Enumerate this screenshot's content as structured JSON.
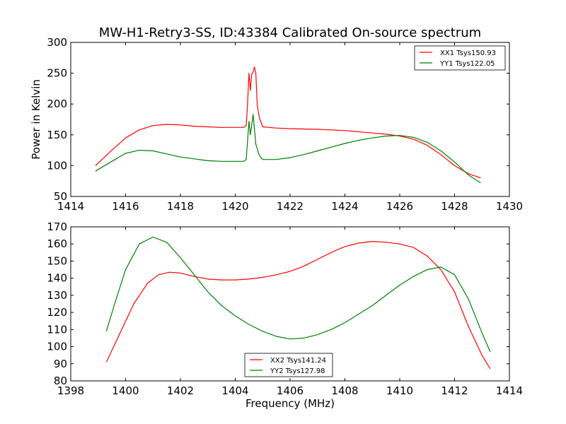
{
  "title": "MW-H1-Retry3-SS, ID:43384 Calibrated On-source spectrum",
  "chart_data": [
    {
      "type": "line",
      "title": "MW-H1-Retry3-SS, ID:43384 Calibrated On-source spectrum",
      "xlabel": "",
      "ylabel": "Power in Kelvin",
      "xlim": [
        1414,
        1430
      ],
      "ylim": [
        50,
        300
      ],
      "xticks": [
        1414,
        1416,
        1418,
        1420,
        1422,
        1424,
        1426,
        1428,
        1430
      ],
      "yticks": [
        50,
        100,
        150,
        200,
        250,
        300
      ],
      "grid": false,
      "legend_position": "top-right",
      "series": [
        {
          "name": "XX1 Tsys150.93",
          "color": "#ff0000",
          "points": [
            [
              1414.9,
              100
            ],
            [
              1415.5,
              125
            ],
            [
              1416.0,
              145
            ],
            [
              1416.5,
              158
            ],
            [
              1417.0,
              165
            ],
            [
              1417.5,
              167
            ],
            [
              1418.0,
              166
            ],
            [
              1418.5,
              164
            ],
            [
              1419.0,
              163
            ],
            [
              1419.5,
              162
            ],
            [
              1420.0,
              162
            ],
            [
              1420.3,
              162
            ],
            [
              1420.4,
              165
            ],
            [
              1420.45,
              200
            ],
            [
              1420.5,
              250
            ],
            [
              1420.55,
              222
            ],
            [
              1420.6,
              248
            ],
            [
              1420.65,
              252
            ],
            [
              1420.7,
              260
            ],
            [
              1420.75,
              250
            ],
            [
              1420.8,
              200
            ],
            [
              1420.85,
              185
            ],
            [
              1420.9,
              175
            ],
            [
              1421.0,
              163
            ],
            [
              1421.5,
              161
            ],
            [
              1422.0,
              160
            ],
            [
              1423.0,
              159
            ],
            [
              1424.0,
              157
            ],
            [
              1425.0,
              153
            ],
            [
              1425.5,
              151
            ],
            [
              1426.0,
              148
            ],
            [
              1426.5,
              143
            ],
            [
              1427.0,
              133
            ],
            [
              1427.5,
              118
            ],
            [
              1428.0,
              100
            ],
            [
              1428.5,
              87
            ],
            [
              1428.95,
              80
            ]
          ]
        },
        {
          "name": "YY1 Tsys122.05",
          "color": "#008000",
          "points": [
            [
              1414.9,
              91
            ],
            [
              1415.5,
              107
            ],
            [
              1416.0,
              120
            ],
            [
              1416.5,
              125
            ],
            [
              1417.0,
              124
            ],
            [
              1417.5,
              119
            ],
            [
              1418.0,
              114
            ],
            [
              1418.5,
              111
            ],
            [
              1419.0,
              108
            ],
            [
              1419.5,
              107
            ],
            [
              1420.0,
              107
            ],
            [
              1420.3,
              107
            ],
            [
              1420.4,
              110
            ],
            [
              1420.45,
              140
            ],
            [
              1420.5,
              172
            ],
            [
              1420.55,
              150
            ],
            [
              1420.6,
              165
            ],
            [
              1420.65,
              183
            ],
            [
              1420.7,
              160
            ],
            [
              1420.75,
              135
            ],
            [
              1420.8,
              128
            ],
            [
              1420.85,
              120
            ],
            [
              1420.9,
              115
            ],
            [
              1421.0,
              110
            ],
            [
              1421.5,
              110
            ],
            [
              1422.0,
              113
            ],
            [
              1422.5,
              118
            ],
            [
              1423.0,
              124
            ],
            [
              1423.5,
              130
            ],
            [
              1424.0,
              136
            ],
            [
              1424.5,
              141
            ],
            [
              1425.0,
              145
            ],
            [
              1425.5,
              148
            ],
            [
              1426.0,
              149
            ],
            [
              1426.5,
              146
            ],
            [
              1427.0,
              138
            ],
            [
              1427.5,
              124
            ],
            [
              1428.0,
              106
            ],
            [
              1428.5,
              85
            ],
            [
              1428.95,
              72
            ]
          ]
        }
      ]
    },
    {
      "type": "line",
      "title": "",
      "xlabel": "Frequency (MHz)",
      "ylabel": "",
      "xlim": [
        1398,
        1414
      ],
      "ylim": [
        80,
        170
      ],
      "xticks": [
        1398,
        1400,
        1402,
        1404,
        1406,
        1408,
        1410,
        1412,
        1414
      ],
      "yticks": [
        80,
        90,
        100,
        110,
        120,
        130,
        140,
        150,
        160,
        170
      ],
      "grid": false,
      "legend_position": "bottom-center",
      "series": [
        {
          "name": "XX2 Tsys141.24",
          "color": "#ff0000",
          "points": [
            [
              1399.3,
              91
            ],
            [
              1399.8,
              108
            ],
            [
              1400.3,
              125
            ],
            [
              1400.8,
              137
            ],
            [
              1401.2,
              142
            ],
            [
              1401.6,
              143.5
            ],
            [
              1402.0,
              143
            ],
            [
              1402.5,
              141
            ],
            [
              1403.0,
              139.5
            ],
            [
              1403.5,
              139
            ],
            [
              1404.0,
              139
            ],
            [
              1404.5,
              139.5
            ],
            [
              1405.0,
              140.5
            ],
            [
              1405.5,
              142
            ],
            [
              1406.0,
              144
            ],
            [
              1406.5,
              147
            ],
            [
              1407.0,
              151
            ],
            [
              1407.5,
              155
            ],
            [
              1408.0,
              158.5
            ],
            [
              1408.5,
              160.5
            ],
            [
              1409.0,
              161.5
            ],
            [
              1409.5,
              161
            ],
            [
              1410.0,
              160
            ],
            [
              1410.5,
              158
            ],
            [
              1411.0,
              153
            ],
            [
              1411.5,
              145
            ],
            [
              1412.0,
              132
            ],
            [
              1412.5,
              112
            ],
            [
              1413.0,
              95
            ],
            [
              1413.3,
              87
            ]
          ]
        },
        {
          "name": "YY2 Tsys127.98",
          "color": "#008000",
          "points": [
            [
              1399.3,
              109
            ],
            [
              1399.6,
              125
            ],
            [
              1400.0,
              145
            ],
            [
              1400.5,
              160
            ],
            [
              1401.0,
              164
            ],
            [
              1401.5,
              161
            ],
            [
              1402.0,
              152
            ],
            [
              1402.5,
              142
            ],
            [
              1403.0,
              132
            ],
            [
              1403.5,
              124
            ],
            [
              1404.0,
              118
            ],
            [
              1404.5,
              113
            ],
            [
              1405.0,
              109
            ],
            [
              1405.5,
              106
            ],
            [
              1406.0,
              104.5
            ],
            [
              1406.5,
              105
            ],
            [
              1407.0,
              107
            ],
            [
              1407.5,
              110
            ],
            [
              1408.0,
              114
            ],
            [
              1408.5,
              119
            ],
            [
              1409.0,
              124
            ],
            [
              1409.5,
              130
            ],
            [
              1410.0,
              136
            ],
            [
              1410.5,
              141
            ],
            [
              1411.0,
              145
            ],
            [
              1411.5,
              146.5
            ],
            [
              1412.0,
              142
            ],
            [
              1412.5,
              128
            ],
            [
              1413.0,
              108
            ],
            [
              1413.3,
              97
            ]
          ]
        }
      ]
    }
  ]
}
